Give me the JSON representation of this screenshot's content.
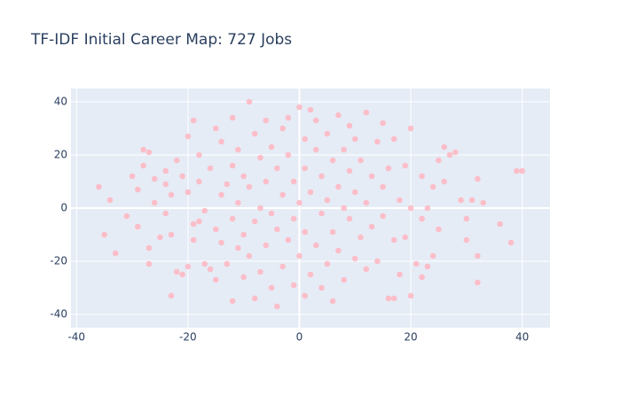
{
  "chart_data": {
    "type": "scatter",
    "title": "TF-IDF Initial Career Map: 727 Jobs",
    "color": "#ffb6c1",
    "grid": true,
    "xlim": [
      -41,
      45
    ],
    "ylim": [
      -45,
      45
    ],
    "xticks": [
      -40,
      -20,
      0,
      20,
      40
    ],
    "yticks": [
      -40,
      -20,
      0,
      20,
      40
    ],
    "x": [
      -36,
      -35,
      -34,
      -33,
      -31,
      -30,
      -29,
      -29,
      -28,
      -28,
      -27,
      -27,
      -26,
      -26,
      -25,
      -24,
      -24,
      -24,
      -23,
      -23,
      -23,
      -22,
      -22,
      -21,
      -21,
      -20,
      -20,
      -20,
      -19,
      -19,
      -18,
      -18,
      -18,
      -17,
      -17,
      -16,
      -16,
      -15,
      -15,
      -15,
      -14,
      -14,
      -14,
      -13,
      -13,
      -12,
      -12,
      -12,
      -12,
      -11,
      -11,
      -11,
      -10,
      -10,
      -10,
      -9,
      -9,
      -9,
      -8,
      -8,
      -8,
      -7,
      -7,
      -7,
      -6,
      -6,
      -6,
      -5,
      -5,
      -5,
      -4,
      -4,
      -4,
      -3,
      -3,
      -3,
      -2,
      -2,
      -2,
      -1,
      -1,
      -1,
      0,
      0,
      0,
      1,
      1,
      1,
      1,
      2,
      2,
      2,
      3,
      3,
      3,
      4,
      4,
      4,
      5,
      5,
      5,
      6,
      6,
      6,
      7,
      7,
      7,
      8,
      8,
      8,
      9,
      9,
      9,
      10,
      10,
      10,
      11,
      11,
      12,
      12,
      12,
      13,
      13,
      14,
      14,
      15,
      15,
      15,
      16,
      16,
      17,
      17,
      18,
      18,
      19,
      19,
      20,
      20,
      20,
      21,
      22,
      22,
      23,
      23,
      24,
      24,
      25,
      25,
      26,
      26,
      27,
      28,
      29,
      30,
      30,
      31,
      32,
      32,
      32,
      33,
      36,
      38,
      39,
      40,
      17,
      22,
      -19,
      -27
    ],
    "y": [
      8,
      -10,
      3,
      -17,
      -3,
      12,
      7,
      -7,
      16,
      22,
      -21,
      21,
      11,
      2,
      -11,
      9,
      14,
      -2,
      -10,
      5,
      -33,
      -24,
      18,
      -25,
      12,
      -22,
      27,
      6,
      33,
      -12,
      20,
      -5,
      10,
      -1,
      -21,
      -23,
      15,
      -27,
      30,
      -8,
      5,
      -13,
      25,
      9,
      -21,
      34,
      16,
      -35,
      -4,
      2,
      -15,
      22,
      -26,
      12,
      -10,
      40,
      -18,
      8,
      28,
      -34,
      -5,
      19,
      0,
      -24,
      33,
      -14,
      10,
      23,
      -30,
      -2,
      15,
      -37,
      -8,
      5,
      30,
      -22,
      -12,
      20,
      34,
      -29,
      10,
      -4,
      38,
      -18,
      2,
      26,
      -9,
      15,
      -33,
      37,
      -25,
      6,
      -14,
      22,
      33,
      -2,
      12,
      -30,
      -21,
      28,
      3,
      -9,
      18,
      -35,
      35,
      -16,
      8,
      -27,
      22,
      0,
      -4,
      14,
      31,
      -19,
      26,
      6,
      -11,
      18,
      -23,
      36,
      2,
      12,
      -7,
      25,
      -20,
      -3,
      32,
      8,
      -34,
      15,
      -12,
      26,
      3,
      -25,
      -11,
      16,
      30,
      -33,
      0,
      -21,
      12,
      -4,
      -22,
      0,
      8,
      -18,
      18,
      -8,
      10,
      23,
      20,
      21,
      3,
      -4,
      -12,
      3,
      11,
      -28,
      -18,
      2,
      -6,
      -13,
      14,
      14,
      -34,
      -26,
      -6,
      -15
    ]
  }
}
